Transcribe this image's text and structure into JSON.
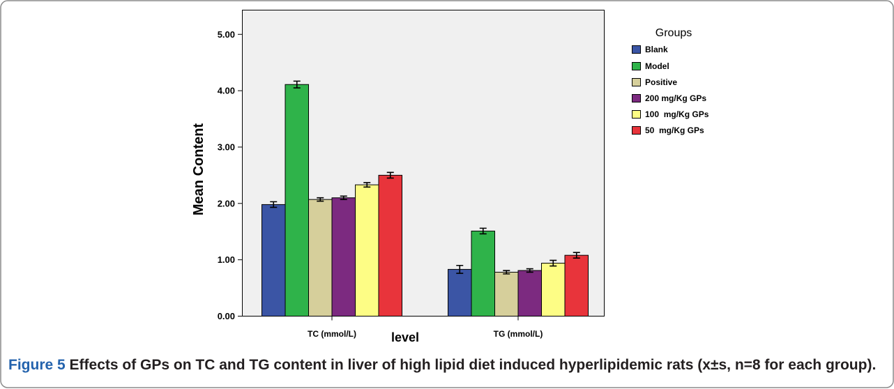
{
  "chart_data": {
    "type": "bar",
    "xlabel": "level",
    "ylabel": "Mean Content",
    "categories": [
      "TC (mmol/L)",
      "TG (mmol/L)"
    ],
    "yticks": [
      "0.00",
      "1.00",
      "2.00",
      "3.00",
      "4.00",
      "5.00"
    ],
    "ylim": [
      0,
      5.43
    ],
    "grid": false,
    "legend": {
      "title": "Groups",
      "position": "right"
    },
    "series": [
      {
        "name": "Blank",
        "color": "#3b55a5",
        "values": [
          1.98,
          0.83
        ],
        "errors": [
          0.05,
          0.07
        ]
      },
      {
        "name": "Model",
        "color": "#2fb34a",
        "values": [
          4.11,
          1.51
        ],
        "errors": [
          0.06,
          0.05
        ]
      },
      {
        "name": "Positive",
        "color": "#d6cf9b",
        "values": [
          2.07,
          0.78
        ],
        "errors": [
          0.03,
          0.03
        ]
      },
      {
        "name": "200 mg/Kg GPs",
        "color": "#7c2a80",
        "values": [
          2.1,
          0.81
        ],
        "errors": [
          0.03,
          0.03
        ]
      },
      {
        "name": "100  mg/Kg GPs",
        "color": "#fdfd85",
        "values": [
          2.33,
          0.94
        ],
        "errors": [
          0.04,
          0.05
        ]
      },
      {
        "name": "50  mg/Kg GPs",
        "color": "#e8343b",
        "values": [
          2.5,
          1.08
        ],
        "errors": [
          0.05,
          0.05
        ]
      }
    ]
  },
  "figure_caption": {
    "label": "Figure 5",
    "text": "Effects of GPs on TC and TG content in liver of high lipid diet induced hyperlipidemic rats (x±s, n=8 for each group).",
    "label_color": "#2463ad"
  }
}
